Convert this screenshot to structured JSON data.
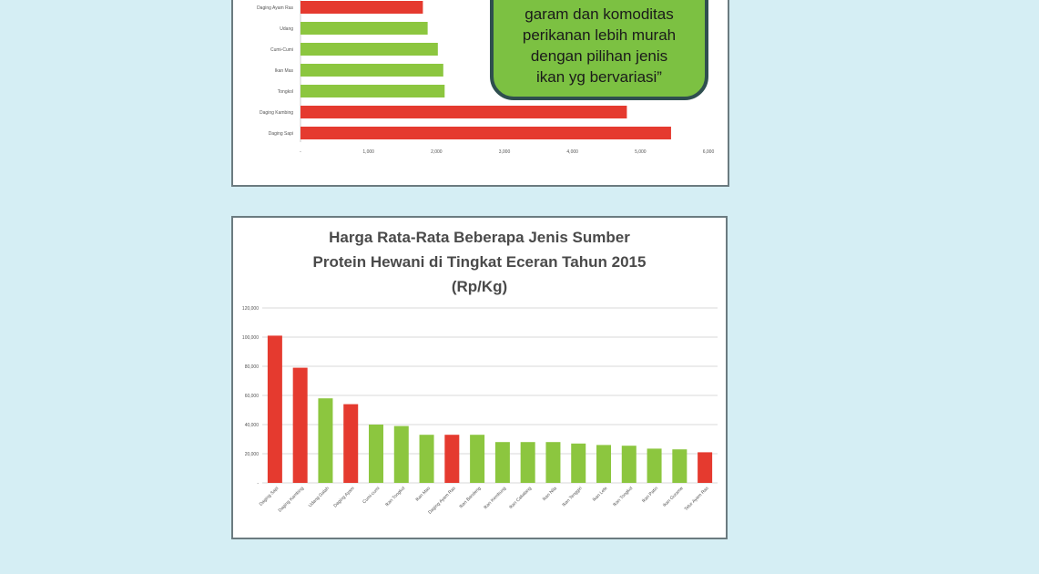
{
  "colors": {
    "red": "#e53a2f",
    "green": "#8cc63f",
    "background": "#d5eef4"
  },
  "callout": {
    "lines": [
      "garam dan komoditas",
      "perikanan lebih murah",
      "dengan pilihan jenis",
      "ikan yg bervariasi”"
    ]
  },
  "chart_data": [
    {
      "type": "bar",
      "orientation": "horizontal",
      "categories": [
        "Daging Ayam Ras",
        "Udang",
        "Cumi-Cumi",
        "Ikan Mas",
        "Tongkol",
        "Daging Kambing",
        "Daging Sapi"
      ],
      "values": [
        1800,
        1870,
        2020,
        2100,
        2120,
        4800,
        5450
      ],
      "colors": [
        "red",
        "green",
        "green",
        "green",
        "green",
        "red",
        "red"
      ],
      "xlim": [
        0,
        6000
      ],
      "xticks": [
        "-",
        "1,000",
        "2,000",
        "3,000",
        "4,000",
        "5,000",
        "6,000"
      ],
      "grid": false
    },
    {
      "type": "bar",
      "title": [
        "Harga Rata-Rata Beberapa Jenis Sumber",
        "Protein Hewani di Tingkat Eceran Tahun 2015",
        "(Rp/Kg)"
      ],
      "categories": [
        "Daging Sapi",
        "Daging Kambing",
        "Udang Galah",
        "Daging Ayam",
        "Cumi-cumi",
        "Ikan Tongkol",
        "Ikan Mas",
        "Daging Ayam Ras",
        "Ikan Bandeng",
        "Ikan Kembung",
        "Ikan Cakalang",
        "Ikan Nila",
        "Ikan Tenggiri",
        "Ikan Lele",
        "Ikan Tongkol",
        "Ikan Patin",
        "Ikan Gurame",
        "Telur Ayam Ras"
      ],
      "values": [
        101000,
        79000,
        58000,
        54000,
        40000,
        39000,
        33000,
        33000,
        33000,
        28000,
        28000,
        28000,
        27000,
        26000,
        25500,
        23500,
        23000,
        21000
      ],
      "colors": [
        "red",
        "red",
        "green",
        "red",
        "green",
        "green",
        "green",
        "red",
        "green",
        "green",
        "green",
        "green",
        "green",
        "green",
        "green",
        "green",
        "green",
        "red"
      ],
      "ylim": [
        0,
        120000
      ],
      "yticks": [
        "-",
        "20,000",
        "40,000",
        "60,000",
        "80,000",
        "100,000",
        "120,000"
      ],
      "grid": true
    }
  ]
}
